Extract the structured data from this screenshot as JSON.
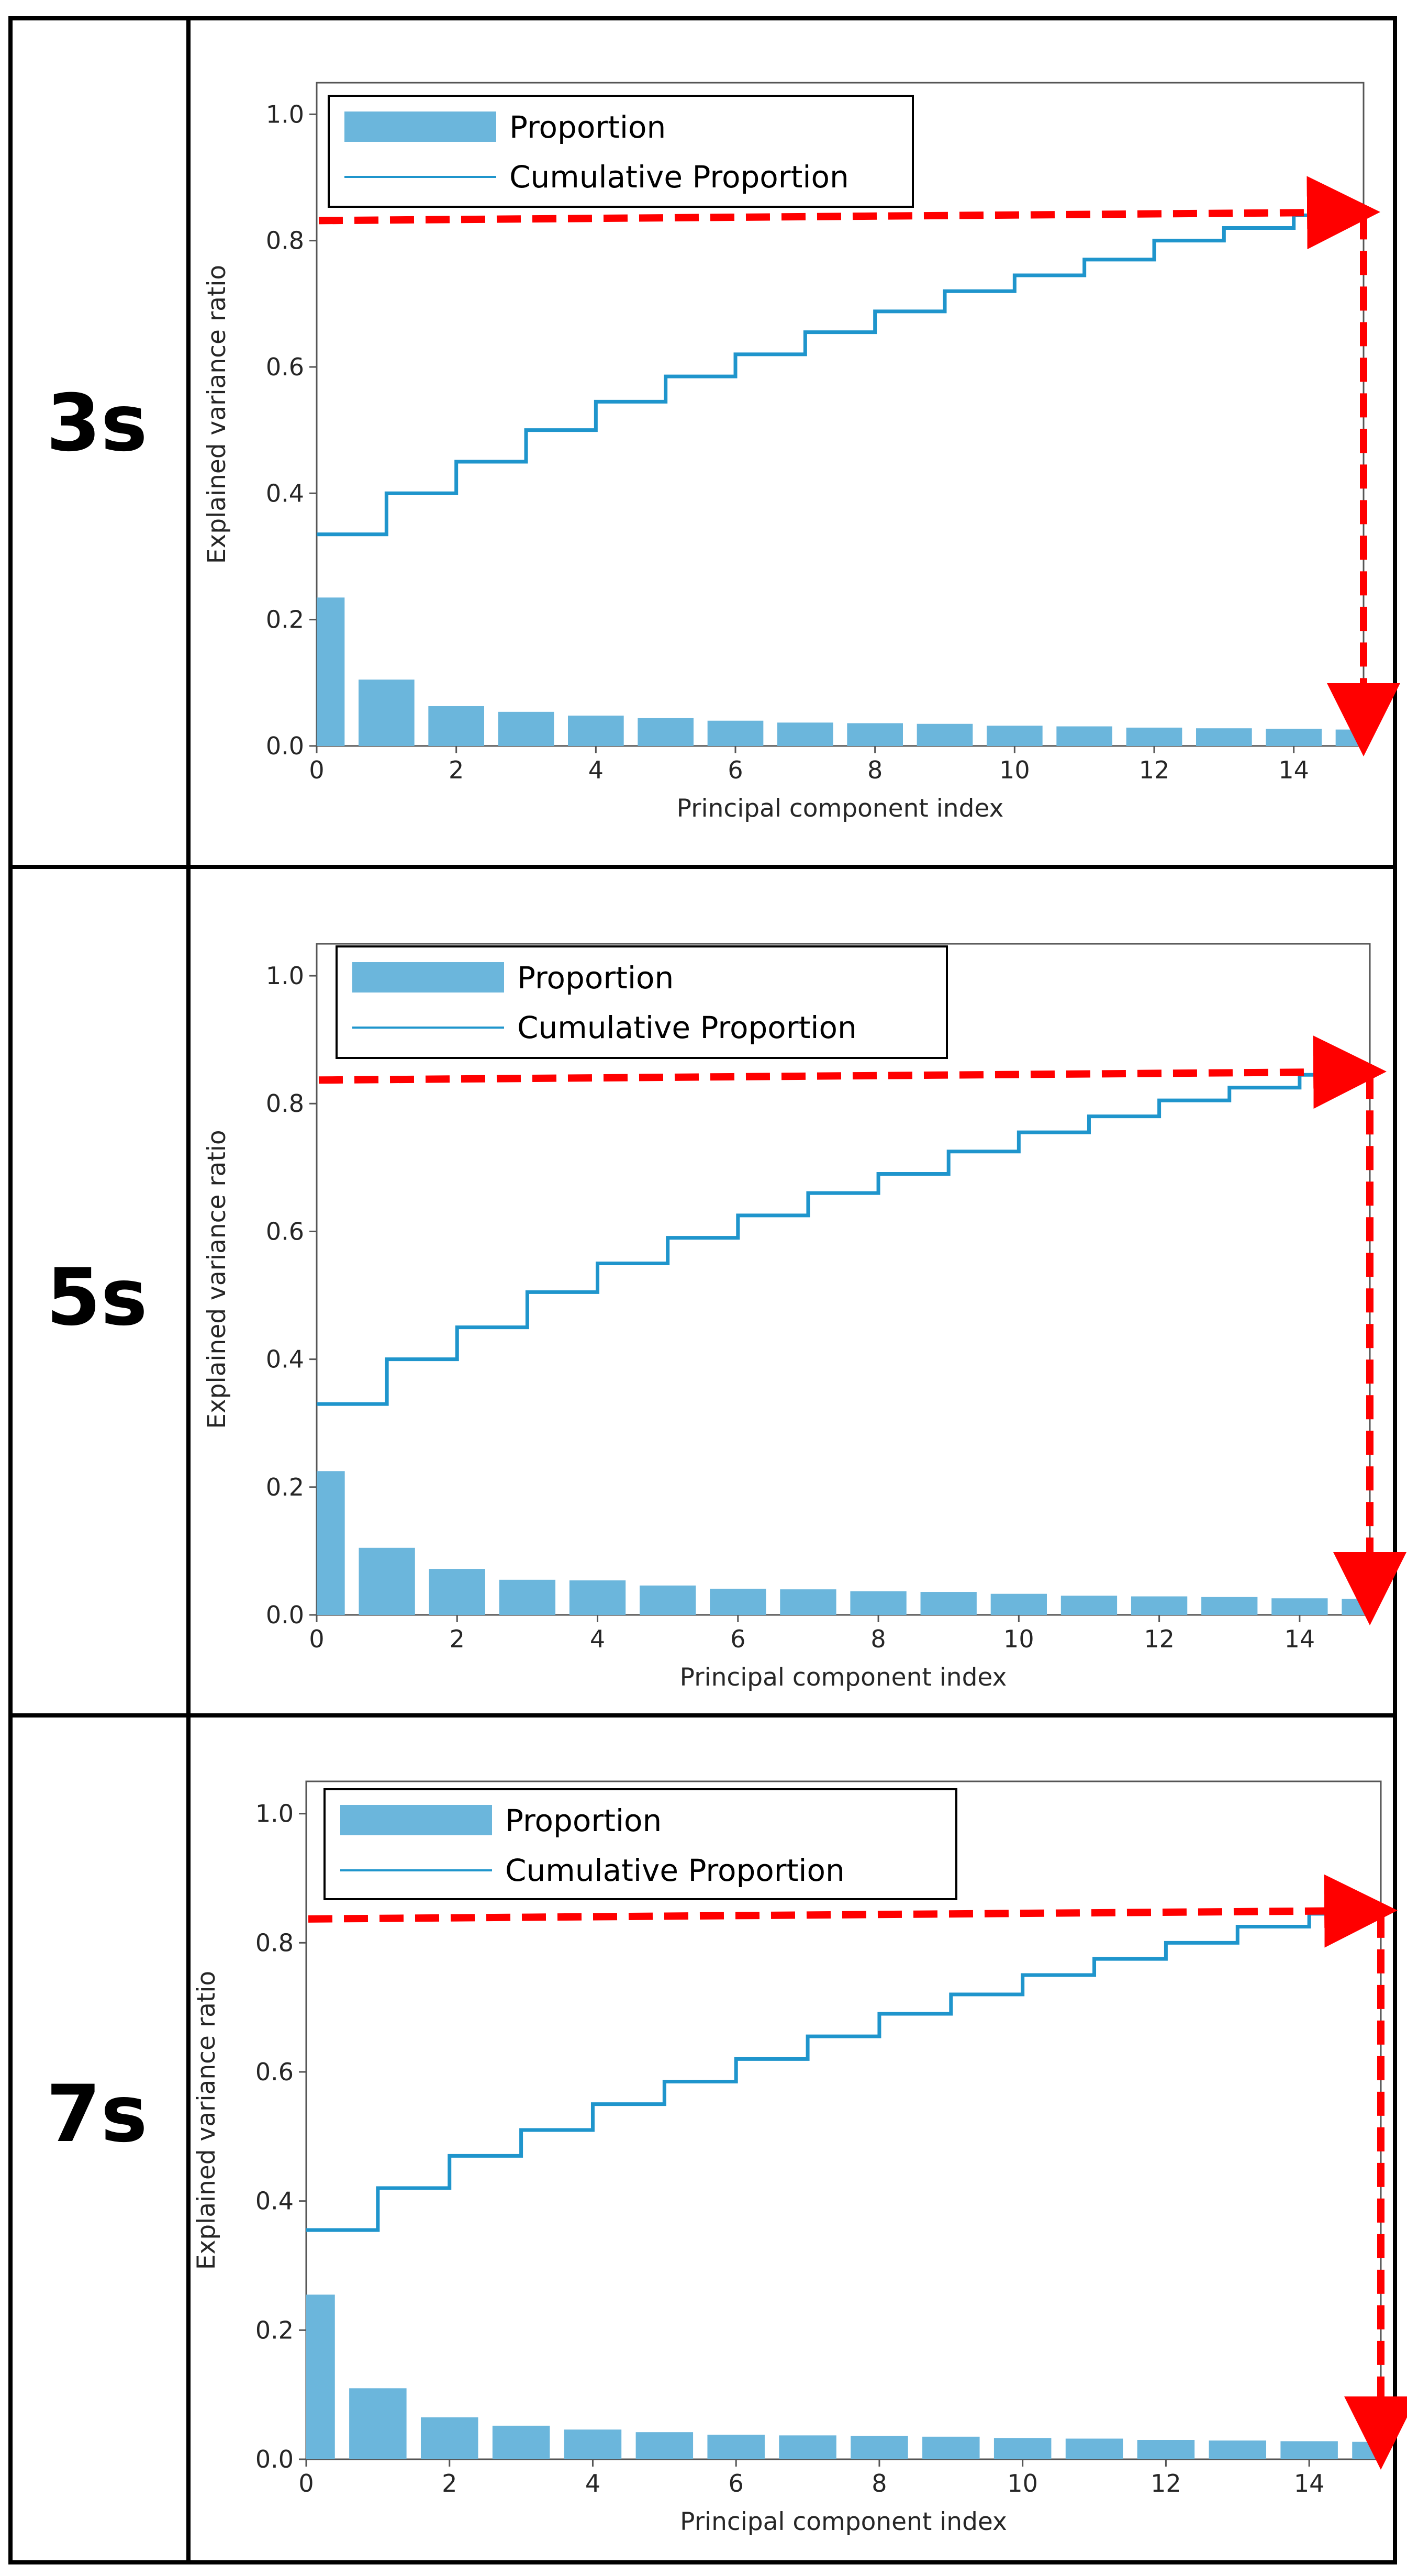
{
  "colors": {
    "bar": "#6bb6dc",
    "line": "#1f95cc",
    "arrow": "#ff0000",
    "frame": "#000000",
    "axes": "#555555"
  },
  "chart_data": [
    {
      "row_label": "3s",
      "type": "bar+step",
      "xlabel": "Principal component index",
      "ylabel": "Explained variance ratio",
      "xlim": [
        0,
        15
      ],
      "ylim": [
        0,
        1.05
      ],
      "xticks": [
        "0",
        "2",
        "4",
        "6",
        "8",
        "10",
        "12",
        "14"
      ],
      "yticks": [
        "0.0",
        "0.2",
        "0.4",
        "0.6",
        "0.8",
        "1.0"
      ],
      "legend": [
        "Proportion",
        "Cumulative Proportion"
      ],
      "legend_position": "top-left",
      "series": [
        {
          "name": "Proportion",
          "kind": "bar",
          "values": [
            0.235,
            0.105,
            0.063,
            0.054,
            0.048,
            0.044,
            0.04,
            0.037,
            0.036,
            0.035,
            0.032,
            0.031,
            0.029,
            0.028,
            0.027,
            0.026
          ]
        },
        {
          "name": "Cumulative Proportion",
          "kind": "step",
          "values": [
            0.335,
            0.4,
            0.45,
            0.5,
            0.545,
            0.585,
            0.62,
            0.655,
            0.688,
            0.72,
            0.745,
            0.77,
            0.8,
            0.82,
            0.84,
            0.845
          ]
        }
      ],
      "annotation": {
        "kind": "dashed-arrow",
        "level": 0.84,
        "x_end": 15
      }
    },
    {
      "row_label": "5s",
      "type": "bar+step",
      "xlabel": "Principal component index",
      "ylabel": "Explained variance ratio",
      "xlim": [
        0,
        15
      ],
      "ylim": [
        0,
        1.05
      ],
      "xticks": [
        "0",
        "2",
        "4",
        "6",
        "8",
        "10",
        "12",
        "14"
      ],
      "yticks": [
        "0.0",
        "0.2",
        "0.4",
        "0.6",
        "0.8",
        "1.0"
      ],
      "legend": [
        "Proportion",
        "Cumulative Proportion"
      ],
      "legend_position": "top-left",
      "series": [
        {
          "name": "Proportion",
          "kind": "bar",
          "values": [
            0.225,
            0.105,
            0.072,
            0.055,
            0.054,
            0.046,
            0.041,
            0.04,
            0.037,
            0.036,
            0.033,
            0.03,
            0.029,
            0.028,
            0.026,
            0.025
          ]
        },
        {
          "name": "Cumulative Proportion",
          "kind": "step",
          "values": [
            0.33,
            0.4,
            0.45,
            0.505,
            0.55,
            0.59,
            0.625,
            0.66,
            0.69,
            0.725,
            0.755,
            0.78,
            0.805,
            0.825,
            0.845,
            0.85
          ]
        }
      ],
      "annotation": {
        "kind": "dashed-arrow",
        "level": 0.845,
        "x_end": 15
      }
    },
    {
      "row_label": "7s",
      "type": "bar+step",
      "xlabel": "Principal component index",
      "ylabel": "Explained variance ratio",
      "xlim": [
        0,
        15
      ],
      "ylim": [
        0,
        1.05
      ],
      "xticks": [
        "0",
        "2",
        "4",
        "6",
        "8",
        "10",
        "12",
        "14"
      ],
      "yticks": [
        "0.0",
        "0.2",
        "0.4",
        "0.6",
        "0.8",
        "1.0"
      ],
      "legend": [
        "Proportion",
        "Cumulative Proportion"
      ],
      "legend_position": "top-left",
      "series": [
        {
          "name": "Proportion",
          "kind": "bar",
          "values": [
            0.255,
            0.11,
            0.065,
            0.052,
            0.046,
            0.042,
            0.038,
            0.037,
            0.036,
            0.035,
            0.033,
            0.032,
            0.03,
            0.029,
            0.028,
            0.027
          ]
        },
        {
          "name": "Cumulative Proportion",
          "kind": "step",
          "values": [
            0.355,
            0.42,
            0.47,
            0.51,
            0.55,
            0.585,
            0.62,
            0.655,
            0.69,
            0.72,
            0.75,
            0.775,
            0.8,
            0.825,
            0.845,
            0.855
          ]
        }
      ],
      "annotation": {
        "kind": "dashed-arrow",
        "level": 0.845,
        "x_end": 15
      }
    }
  ]
}
